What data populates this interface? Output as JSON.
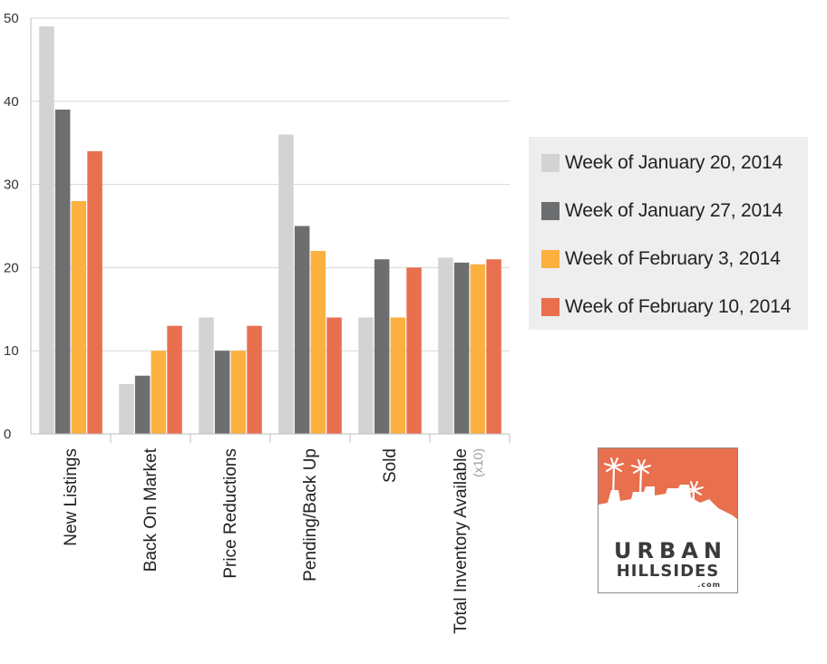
{
  "chart_data": {
    "type": "bar",
    "categories": [
      "New Listings",
      "Back On Market",
      "Price Reductions",
      "Pending/Back Up",
      "Sold",
      "Total Inventory Available"
    ],
    "category_notes": [
      "",
      "",
      "",
      "",
      "",
      "(x10)"
    ],
    "series": [
      {
        "name": "Week of January 20, 2014",
        "color": "#d3d3d4",
        "values": [
          49,
          6,
          14,
          36,
          14,
          21.2
        ]
      },
      {
        "name": "Week of January 27, 2014",
        "color": "#6d6e70",
        "values": [
          39,
          7,
          10,
          25,
          21,
          20.6
        ]
      },
      {
        "name": "Week of February 3, 2014",
        "color": "#fbb040",
        "values": [
          28,
          10,
          10,
          22,
          14,
          20.4
        ]
      },
      {
        "name": "Week of February 10, 2014",
        "color": "#e8704f",
        "values": [
          34,
          13,
          13,
          14,
          20,
          21.0
        ]
      }
    ],
    "ylim": [
      0,
      50
    ],
    "yticks": [
      "0",
      "10",
      "20",
      "30",
      "40",
      "50"
    ],
    "grid": true,
    "legend_position": "right"
  },
  "logo": {
    "line1": "URBAN",
    "line2": "HILLSIDES",
    "line3": ".com",
    "color": "#e8704f"
  }
}
